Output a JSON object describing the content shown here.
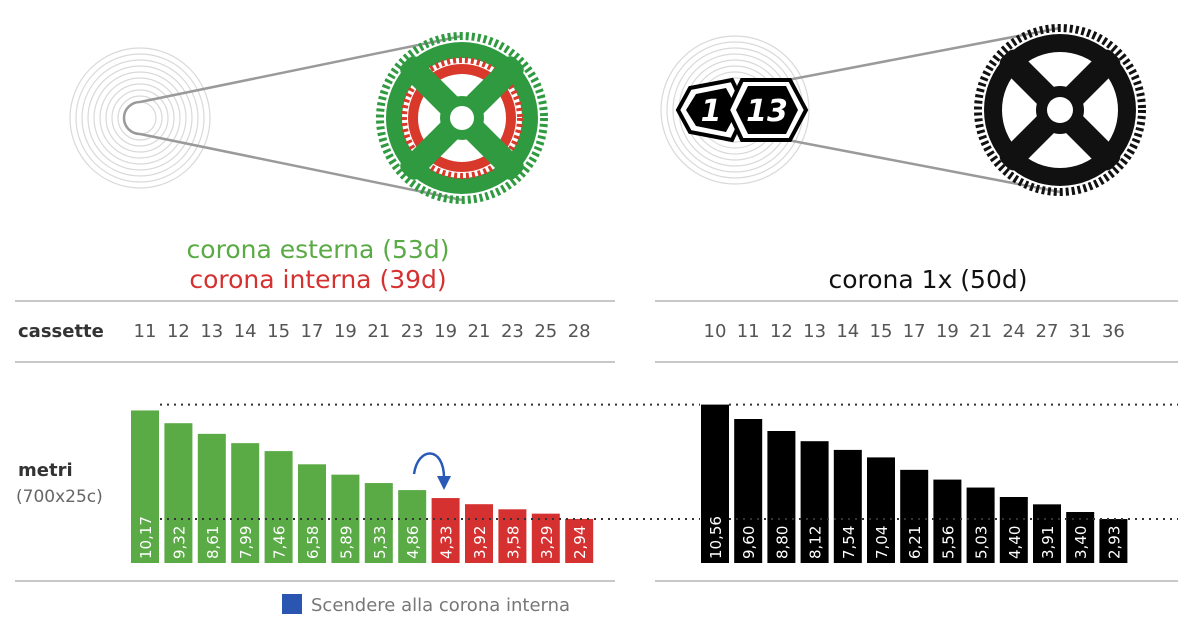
{
  "colors": {
    "outer": "#5aaa45",
    "inner": "#d63131",
    "single": "#000000",
    "arrow": "#2a5ab8",
    "legend_square": "#2a55b0",
    "rule": "#c8c8c8",
    "ring_outer": "#2f9a3f",
    "ring_inner": "#d8392b"
  },
  "icons": {
    "left_drivetrain": "double-chainring-icon",
    "right_drivetrain": "single-chainring-icon",
    "badge": "1x13-badge-icon",
    "shift_arrow": "curved-arrow-icon"
  },
  "headings": {
    "left_line1": "corona esterna  (53d)",
    "left_line2": "corona interna  (39d)",
    "right": "corona 1x (50d)"
  },
  "badge_text": {
    "left": "1",
    "right": "13"
  },
  "row_labels": {
    "cassette": "cassette",
    "metri": "metri",
    "metri_sub": "(700x25c)"
  },
  "legend": {
    "text": "Scendere alla corona interna"
  },
  "chart_data": [
    {
      "type": "bar",
      "categories": [
        "11",
        "12",
        "13",
        "14",
        "15",
        "17",
        "19",
        "21",
        "23",
        "19",
        "21",
        "23",
        "25",
        "28"
      ],
      "series": [
        {
          "name": "corona esterna  (53d)",
          "values": [
            10.17,
            9.32,
            8.61,
            7.99,
            7.46,
            6.58,
            5.89,
            5.33,
            4.86,
            null,
            null,
            null,
            null,
            null
          ]
        },
        {
          "name": "corona interna  (39d)",
          "values": [
            null,
            null,
            null,
            null,
            null,
            null,
            null,
            null,
            null,
            4.33,
            3.92,
            3.58,
            3.29,
            2.94
          ]
        }
      ],
      "labels": [
        "10,17",
        "9,32",
        "8,61",
        "7,99",
        "7,46",
        "6,58",
        "5,89",
        "5,33",
        "4,86",
        "4,33",
        "3,92",
        "3,58",
        "3,29",
        "2,94"
      ],
      "xlabel": "cassette",
      "ylabel": "metri (700x25c)",
      "ylim": [
        0,
        11
      ],
      "reference_lines": [
        10.56,
        2.93
      ],
      "annotation": "Scendere alla corona interna"
    },
    {
      "type": "bar",
      "categories": [
        "10",
        "11",
        "12",
        "13",
        "14",
        "15",
        "17",
        "19",
        "21",
        "24",
        "27",
        "31",
        "36"
      ],
      "series": [
        {
          "name": "corona 1x (50d)",
          "values": [
            10.56,
            9.6,
            8.8,
            8.12,
            7.54,
            7.04,
            6.21,
            5.56,
            5.03,
            4.4,
            3.91,
            3.4,
            2.93
          ]
        }
      ],
      "labels": [
        "10,56",
        "9,60",
        "8,80",
        "8,12",
        "7,54",
        "7,04",
        "6,21",
        "5,56",
        "5,03",
        "4,40",
        "3,91",
        "3,40",
        "2,93"
      ],
      "xlabel": "cassette",
      "ylabel": "metri (700x25c)",
      "ylim": [
        0,
        11
      ],
      "reference_lines": [
        10.56,
        2.93
      ]
    }
  ]
}
